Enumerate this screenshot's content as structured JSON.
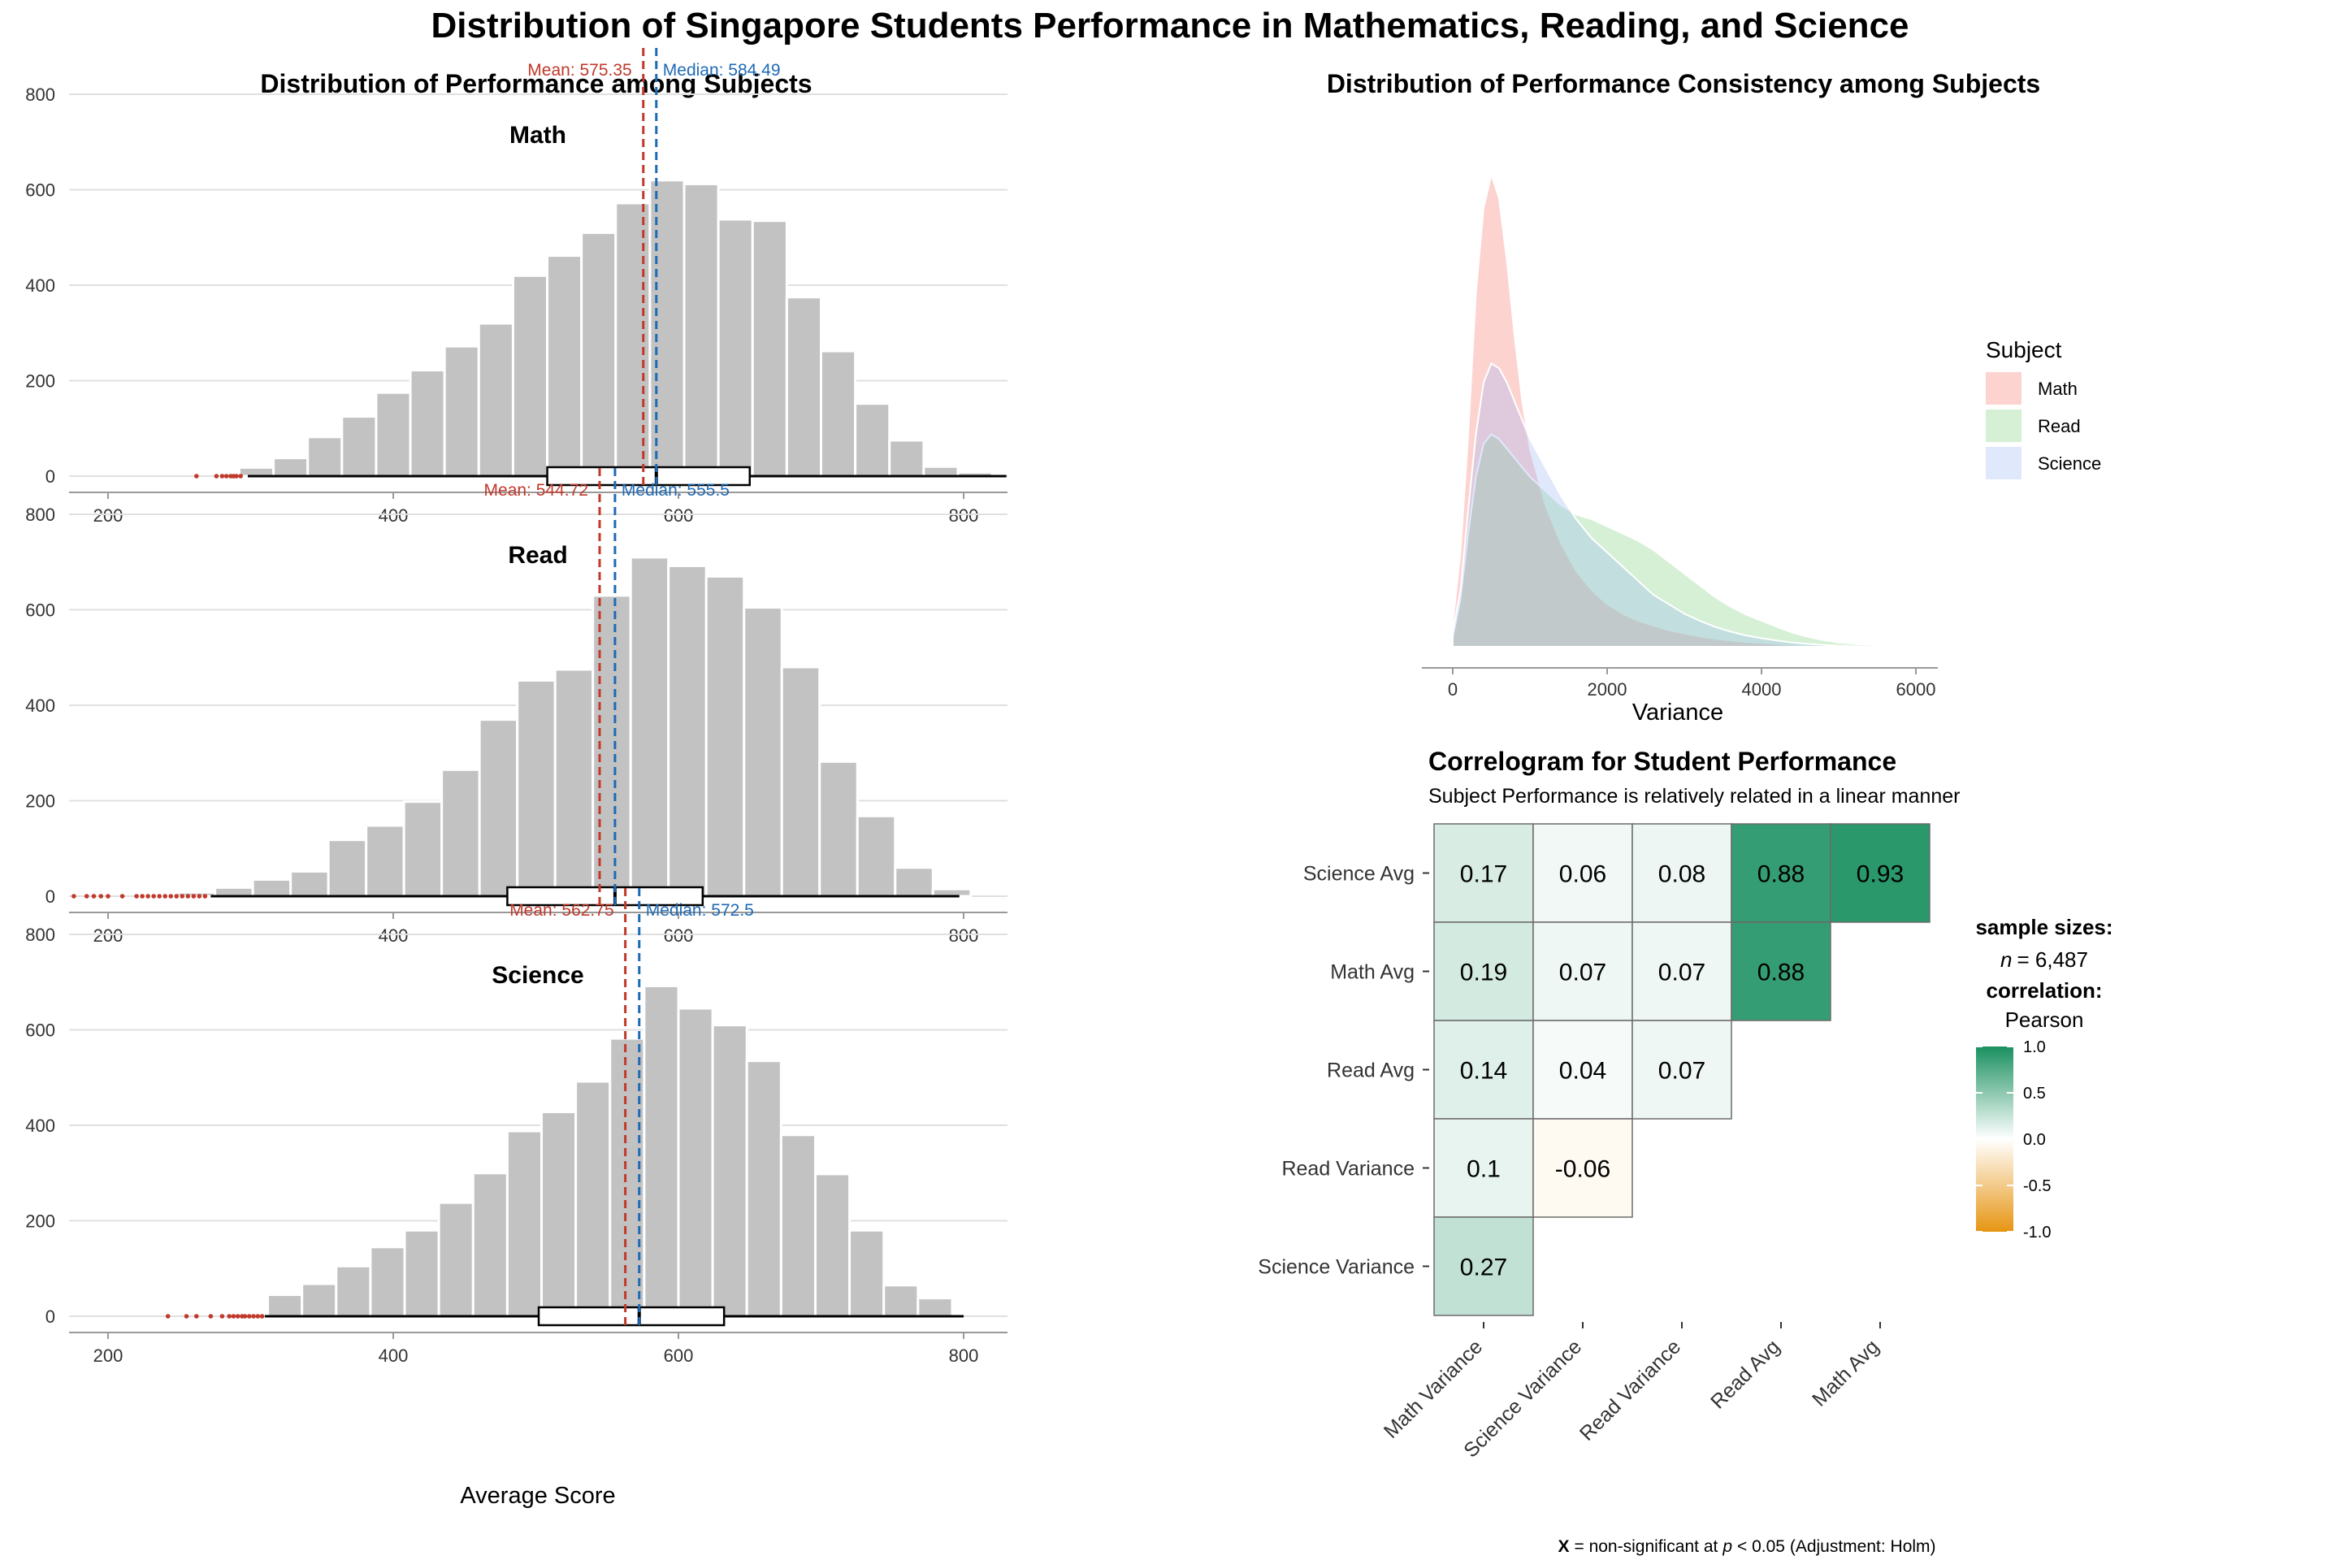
{
  "title": "Distribution of Singapore Students Performance in Mathematics, Reading, and Science",
  "colors": {
    "bar": "#c2c2c2",
    "mean": "#c0392b",
    "median": "#1f6ab5",
    "outlier": "#c0392b",
    "grid": "#e0e0e0",
    "axis": "#999999",
    "density": {
      "Math": "#f8766d",
      "Read": "#7cd17c",
      "Science": "#9fb8f5"
    },
    "corr_pos": "#1a9060",
    "corr_neg": "#e69512"
  },
  "left_panel": {
    "title": "Distribution of Performance among Subjects",
    "xlabel": "Average Score"
  },
  "right_top": {
    "title": "Distribution of Performance Consistency among Subjects",
    "legend_title": "Subject"
  },
  "correlogram": {
    "title": "Correlogram for Student Performance",
    "subtitle": "Subject Performance is relatively related in a linear manner",
    "sample_label": "sample sizes:",
    "sample_n_prefix": "n",
    "sample_n_value": "= 6,487",
    "corr_label": "correlation:",
    "corr_method": "Pearson",
    "footnote_x": "X",
    "footnote_mid": "= non-significant at",
    "footnote_p": "p",
    "footnote_end": "< 0.05 (Adjustment: Holm)"
  },
  "chart_data": [
    {
      "type": "bar",
      "title": "Math",
      "xlabel": "Average Score",
      "ylabel": "",
      "xlim": [
        175,
        830
      ],
      "ylim": [
        0,
        880
      ],
      "x_ticks": [
        200,
        400,
        600,
        800
      ],
      "y_ticks": [
        0,
        200,
        400,
        600,
        800
      ],
      "bin_width": 24,
      "bin_start": 292,
      "values": [
        18,
        38,
        82,
        125,
        175,
        222,
        272,
        320,
        420,
        462,
        510,
        572,
        620,
        612,
        538,
        535,
        375,
        262,
        152,
        75,
        20,
        8
      ],
      "mean": 575.35,
      "mean_label": "Mean: 575.35",
      "median": 584.49,
      "median_label": "Median: 584.49",
      "box": {
        "whisker_low": 298,
        "q1": 508,
        "median": 584.49,
        "q3": 650,
        "whisker_high": 830
      },
      "outliers": [
        262,
        276,
        280,
        283,
        286,
        288,
        290,
        293
      ]
    },
    {
      "type": "bar",
      "title": "Read",
      "xlabel": "Average Score",
      "ylabel": "",
      "xlim": [
        175,
        830
      ],
      "ylim": [
        0,
        880
      ],
      "x_ticks": [
        200,
        400,
        600,
        800
      ],
      "y_ticks": [
        0,
        200,
        400,
        600,
        800
      ],
      "bin_width": 26.5,
      "bin_start": 222,
      "values": [
        3,
        8,
        18,
        35,
        52,
        118,
        148,
        198,
        265,
        370,
        452,
        475,
        630,
        710,
        692,
        670,
        605,
        480,
        282,
        168,
        60,
        15
      ],
      "mean": 544.72,
      "mean_label": "Mean: 544.72",
      "median": 555.5,
      "median_label": "Median: 555.5",
      "box": {
        "whisker_low": 272,
        "q1": 480,
        "median": 555.5,
        "q3": 617,
        "whisker_high": 797
      },
      "outliers": [
        176,
        185,
        190,
        195,
        200,
        210,
        220,
        224,
        228,
        232,
        236,
        240,
        244,
        248,
        252,
        256,
        260,
        264,
        268
      ]
    },
    {
      "type": "bar",
      "title": "Science",
      "xlabel": "Average Score",
      "ylabel": "",
      "xlim": [
        175,
        830
      ],
      "ylim": [
        0,
        880
      ],
      "x_ticks": [
        200,
        400,
        600,
        800
      ],
      "y_ticks": [
        0,
        200,
        400,
        600,
        800
      ],
      "bin_width": 24,
      "bin_start": 312,
      "values": [
        45,
        68,
        105,
        145,
        180,
        238,
        300,
        388,
        428,
        492,
        582,
        692,
        645,
        610,
        535,
        380,
        298,
        180,
        65,
        38
      ],
      "mean": 562.75,
      "mean_label": "Mean: 562.75",
      "median": 572.5,
      "median_label": "Median: 572.5",
      "box": {
        "whisker_low": 310,
        "q1": 502,
        "median": 572.5,
        "q3": 632,
        "whisker_high": 800
      },
      "outliers": [
        242,
        255,
        262,
        272,
        280,
        285,
        288,
        291,
        294,
        296,
        299,
        302,
        305,
        308
      ]
    },
    {
      "type": "area",
      "title": "Distribution of Performance Consistency among Subjects",
      "xlabel": "Variance",
      "ylabel": "",
      "xlim": [
        -300,
        6300
      ],
      "ylim": [
        0,
        1
      ],
      "x_ticks": [
        0,
        2000,
        4000,
        6000
      ],
      "x": [
        0,
        100,
        200,
        300,
        400,
        500,
        600,
        700,
        800,
        900,
        1000,
        1200,
        1400,
        1600,
        1800,
        2000,
        2200,
        2400,
        2600,
        2800,
        3000,
        3200,
        3400,
        3600,
        3800,
        4000,
        4200,
        4400,
        4600,
        4800,
        5000,
        5200,
        5400,
        5600,
        5800,
        6000
      ],
      "series": [
        {
          "name": "Math",
          "values": [
            0.05,
            0.2,
            0.45,
            0.75,
            0.93,
            1.0,
            0.95,
            0.82,
            0.66,
            0.52,
            0.42,
            0.3,
            0.22,
            0.16,
            0.12,
            0.09,
            0.07,
            0.055,
            0.045,
            0.035,
            0.028,
            0.022,
            0.017,
            0.013,
            0.01,
            0.008,
            0.006,
            0.004,
            0.003,
            0.002,
            0.001,
            0.001,
            0,
            0,
            0,
            0
          ]
        },
        {
          "name": "Read",
          "values": [
            0.02,
            0.1,
            0.24,
            0.36,
            0.43,
            0.45,
            0.44,
            0.42,
            0.4,
            0.38,
            0.36,
            0.33,
            0.3,
            0.28,
            0.27,
            0.255,
            0.24,
            0.225,
            0.205,
            0.18,
            0.155,
            0.13,
            0.105,
            0.085,
            0.068,
            0.055,
            0.042,
            0.03,
            0.021,
            0.014,
            0.009,
            0.006,
            0.004,
            0.002,
            0.001,
            0
          ]
        },
        {
          "name": "Science",
          "values": [
            0.03,
            0.12,
            0.29,
            0.45,
            0.56,
            0.6,
            0.59,
            0.56,
            0.52,
            0.48,
            0.44,
            0.38,
            0.32,
            0.27,
            0.23,
            0.2,
            0.17,
            0.14,
            0.11,
            0.09,
            0.07,
            0.055,
            0.042,
            0.032,
            0.024,
            0.018,
            0.013,
            0.009,
            0.006,
            0.004,
            0.002,
            0.001,
            0,
            0,
            0,
            0
          ]
        }
      ]
    },
    {
      "type": "heatmap",
      "title": "Correlogram for Student Performance",
      "subtitle": "Subject Performance is relatively related in a linear manner",
      "columns": [
        "Math Variance",
        "Science Variance",
        "Read Variance",
        "Read Avg",
        "Math Avg"
      ],
      "rows": [
        "Science Avg",
        "Math Avg",
        "Read Avg",
        "Read Variance",
        "Science Variance"
      ],
      "values": [
        [
          0.17,
          0.06,
          0.08,
          0.88,
          0.93
        ],
        [
          0.19,
          0.07,
          0.07,
          0.88,
          null
        ],
        [
          0.14,
          0.04,
          0.07,
          null,
          null
        ],
        [
          0.1,
          -0.06,
          null,
          null,
          null
        ],
        [
          0.27,
          null,
          null,
          null,
          null
        ]
      ],
      "colorbar_ticks": [
        1.0,
        0.5,
        0.0,
        -0.5,
        -1.0
      ],
      "colorbar_labels": [
        "1.0",
        "0.5",
        "0.0",
        "-0.5",
        "-1.0"
      ],
      "colorbar_range": [
        -1,
        1
      ]
    }
  ]
}
